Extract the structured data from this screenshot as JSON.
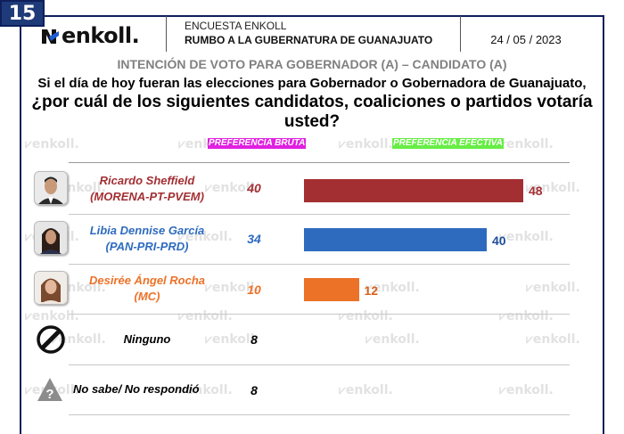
{
  "header": {
    "slide_number": "15",
    "logo_text": "enkoll.",
    "survey_label": "ENCUESTA ENKOLL",
    "survey_title": "RUMBO A LA GUBERNATURA DE GUANAJUATO",
    "date": "24 / 05 / 2023"
  },
  "title": "INTENCIÓN DE VOTO PARA GOBERNADOR (A) – CANDIDATO (A)",
  "question_line1": "Si el día de hoy fueran las elecciones para Gobernador o Gobernadora de Guanajuato,",
  "question_line2": "¿por cuál de los siguientes candidatos, coaliciones o partidos votaría usted?",
  "legend": {
    "bruta": {
      "label": "PREFERENCIA BRUTA",
      "color": "#e020e0"
    },
    "efectiva": {
      "label": "PREFERENCIA EFECTIVA",
      "color": "#66ee44"
    }
  },
  "watermark": "enkoll.",
  "rows": [
    {
      "name": "Ricardo Sheffield",
      "party": "(MORENA-PT-PVEM)",
      "icon": "candidate-photo-icon",
      "color": "#a32f33",
      "bruta": "40",
      "efectiva": "48"
    },
    {
      "name": "Libia Dennise García",
      "party": "(PAN-PRI-PRD)",
      "icon": "candidate-photo-icon",
      "color": "#2e6bbf",
      "bruta": "34",
      "efectiva": "40"
    },
    {
      "name": "Desirée Ángel Rocha",
      "party": "(MC)",
      "icon": "candidate-photo-icon",
      "color": "#ec7228",
      "bruta": "10",
      "efectiva": "12"
    },
    {
      "name": "Ninguno",
      "party": "",
      "icon": "prohibited-icon",
      "color": "#000000",
      "bruta": "8",
      "efectiva": ""
    },
    {
      "name": "No sabe/ No respondió",
      "party": "",
      "icon": "question-warning-icon",
      "color": "#000000",
      "bruta": "8",
      "efectiva": ""
    }
  ],
  "chart_data": {
    "type": "bar",
    "title": "INTENCIÓN DE VOTO PARA GOBERNADOR (A) – CANDIDATO (A)",
    "categories": [
      "Ricardo Sheffield (MORENA-PT-PVEM)",
      "Libia Dennise García (PAN-PRI-PRD)",
      "Desirée Ángel Rocha (MC)",
      "Ninguno",
      "No sabe/ No respondió"
    ],
    "series": [
      {
        "name": "PREFERENCIA BRUTA",
        "values": [
          40,
          34,
          10,
          8,
          8
        ],
        "display": "text"
      },
      {
        "name": "PREFERENCIA EFECTIVA",
        "values": [
          48,
          40,
          12,
          null,
          null
        ],
        "display": "bar",
        "colors": [
          "#a32f33",
          "#2e6bbf",
          "#ec7228"
        ]
      }
    ],
    "orientation": "horizontal",
    "xlim": [
      0,
      50
    ],
    "grid": false,
    "xlabel": "",
    "ylabel": ""
  }
}
